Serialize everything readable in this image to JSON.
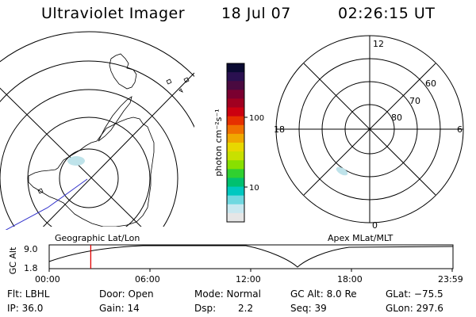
{
  "header": {
    "instrument": "Ultraviolet Imager",
    "date": "18 Jul 07",
    "time": "02:26:15 UT"
  },
  "colorbar": {
    "unit_label": "photon cm⁻²s⁻¹",
    "ticks": [
      "100",
      "10"
    ]
  },
  "mag_plot": {
    "mlt_labels": {
      "top": "12",
      "left": "18",
      "right": "6",
      "bottom": "0"
    },
    "lat_labels": [
      "60",
      "70",
      "80"
    ]
  },
  "captions": {
    "left": "Geographic Lat/Lon",
    "right": "Apex MLat/MLT"
  },
  "orbit": {
    "axis_label": "GC Alt",
    "y_ticks": [
      "9.0",
      "1.8"
    ],
    "x_ticks": [
      "00:00",
      "06:00",
      "12:00",
      "18:00",
      "23:59"
    ],
    "current_time_fraction": 0.103
  },
  "footer": {
    "flt": "Flt: LBHL",
    "door": "Door: Open",
    "mode": "Mode: Normal",
    "gc_alt": "GC Alt: 8.0 Re",
    "glat": "GLat: −75.5",
    "ip": "IP: 36.0",
    "gain": "Gain: 14",
    "dsp_label": "Dsp:",
    "dsp_value": "2.2",
    "seq": "Seq: 39",
    "glon": "GLon: 297.6"
  },
  "colors": {
    "coastline": "#000000",
    "track": "#3333cc",
    "aurora": "#bfe3ea",
    "time_marker": "#e00000"
  }
}
